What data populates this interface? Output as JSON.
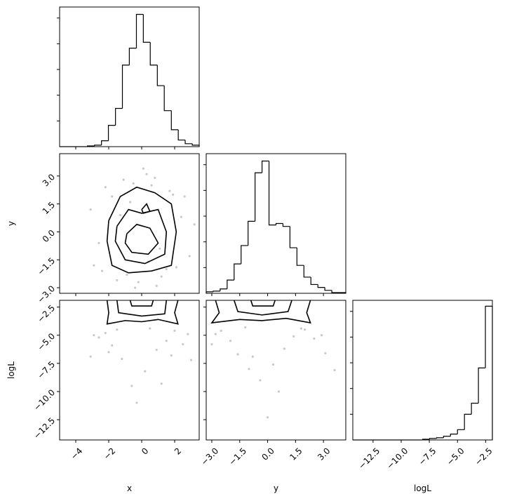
{
  "chart_data": {
    "type": "corner",
    "variables": [
      {
        "name": "x",
        "lim": [
          -4.98,
          3.49
        ],
        "ticks": [
          {
            "value": -4,
            "label": "−4"
          },
          {
            "value": -2,
            "label": "−2"
          },
          0,
          2
        ]
      },
      {
        "name": "y",
        "lim": [
          -3.3,
          4.2
        ],
        "ticks": [
          {
            "value": -3,
            "label": "−3.0"
          },
          {
            "value": -1.5,
            "label": "−1.5"
          },
          {
            "value": 0,
            "label": "0.0"
          },
          1.5,
          {
            "value": 3,
            "label": "3.0"
          }
        ]
      },
      {
        "name": "logL",
        "lim": [
          -14.3,
          -1.9
        ],
        "ticks": [
          {
            "value": -12.5,
            "label": "−12.5"
          },
          {
            "value": -10,
            "label": "−10.0"
          },
          {
            "value": -7.5,
            "label": "−7.5"
          },
          {
            "value": -5,
            "label": "−5.0"
          },
          {
            "value": -2.5,
            "label": "−2.5"
          }
        ]
      }
    ],
    "hist_ylim": [
      0,
      190
    ],
    "hist_ticks": [
      35,
      70,
      105,
      140,
      175
    ],
    "line_color": "#000000",
    "point_color": "#888888",
    "histograms": [
      {
        "var": 0,
        "bins": [
          -4.98,
          -4.56,
          -4.13,
          -3.71,
          -3.29,
          -2.86,
          -2.44,
          -2.02,
          -1.59,
          -1.17,
          -0.75,
          -0.32,
          0.1,
          0.52,
          0.95,
          1.37,
          1.8,
          2.22,
          2.64,
          3.07,
          3.49
        ],
        "counts": [
          0,
          0,
          0,
          0,
          1,
          2,
          8,
          29,
          52,
          111,
          134,
          180,
          142,
          111,
          83,
          49,
          23,
          9,
          4,
          2
        ]
      },
      {
        "var": 1,
        "bins": [
          -3.3,
          -2.925,
          -2.55,
          -2.175,
          -1.8,
          -1.425,
          -1.05,
          -0.675,
          -0.3,
          0.075,
          0.45,
          0.825,
          1.2,
          1.575,
          1.95,
          2.325,
          2.7,
          3.075,
          3.45,
          3.825,
          4.2
        ],
        "counts": [
          2,
          3,
          6,
          18,
          40,
          65,
          98,
          164,
          180,
          93,
          95,
          91,
          62,
          38,
          22,
          12,
          8,
          4,
          1,
          1
        ]
      },
      {
        "var": 2,
        "bins": [
          -14.3,
          -13.68,
          -13.06,
          -12.44,
          -11.82,
          -11.2,
          -10.58,
          -9.96,
          -9.34,
          -8.72,
          -8.1,
          -7.48,
          -6.86,
          -6.24,
          -5.62,
          -5.0,
          -4.38,
          -3.76,
          -3.14,
          -2.52,
          -1.9
        ],
        "counts": [
          0,
          0,
          0,
          0,
          0,
          0,
          0,
          0,
          0,
          0,
          1,
          2,
          3,
          5,
          8,
          14,
          35,
          50,
          98,
          182
        ]
      }
    ],
    "panels": [
      {
        "xvar": 0,
        "yvar": 1,
        "points": {
          "x": [
            -0.5,
            1.2,
            -1.8,
            0.3,
            2.4,
            -2.6,
            0.9,
            -0.2,
            1.7,
            -1.1,
            2.9,
            -3.1,
            0.6,
            -0.9,
            1.5,
            -2.2,
            0.1,
            2.1,
            -1.5,
            0.8,
            -0.4,
            3.2,
            -2.9,
            1.9,
            -0.7,
            0.4,
            -1.3,
            2.6,
            -2.4,
            1.1
          ],
          "y": [
            2.6,
            -2.4,
            1.9,
            3.1,
            0.8,
            -0.6,
            -2.9,
            -2.7,
            2.2,
            2.8,
            -1.3,
            1.2,
            2.5,
            -2.3,
            -2.0,
            2.4,
            3.4,
            -1.9,
            -2.6,
            2.9,
            -3.0,
            0.4,
            -1.8,
            2.0,
            1.6,
            -1.6,
            0.9,
            1.9,
            -2.1,
            -0.9
          ]
        },
        "contours": [
          {
            "x": [
              -2.0,
              -1.3,
              -0.3,
              0.8,
              1.8,
              2.1,
              1.8,
              0.6,
              -0.8,
              -1.8,
              -2.1,
              -2.0
            ],
            "y": [
              0.6,
              1.9,
              2.4,
              2.1,
              1.5,
              0,
              -1.8,
              -2.1,
              -2.2,
              -1.8,
              -0.5,
              0.6
            ]
          },
          {
            "x": [
              -1.5,
              -0.8,
              0,
              1.0,
              1.5,
              1.4,
              0.2,
              -1.0,
              -1.6,
              -1.5
            ],
            "y": [
              0.3,
              1.2,
              1.0,
              1.2,
              0,
              -1.2,
              -1.7,
              -1.5,
              -0.5,
              0.3
            ]
          },
          {
            "x": [
              -0.9,
              -0.3,
              0.5,
              1.0,
              0.4,
              -0.6,
              -1.0,
              -0.9
            ],
            "y": [
              -0.1,
              0.4,
              0.2,
              -0.6,
              -1.2,
              -1.1,
              -0.6,
              -0.1
            ]
          },
          {
            "x": [
              0,
              0.3,
              0.5,
              0.1,
              0
            ],
            "y": [
              1.2,
              1.5,
              1.1,
              1.0,
              1.2
            ]
          }
        ]
      },
      {
        "xvar": 0,
        "yvar": 2,
        "points": {
          "x": [
            -3.1,
            -2.6,
            -2.2,
            -1.8,
            -1.2,
            -0.6,
            0.2,
            0.9,
            1.5,
            2.0,
            2.5,
            3.0,
            -2.9,
            -1.5,
            0.5,
            1.8,
            2.8,
            -0.3,
            -2.0,
            1.2
          ],
          "y": [
            -6.9,
            -5.2,
            -4.8,
            -5.9,
            -7.1,
            -9.5,
            -8.2,
            -6.3,
            -5.5,
            -4.6,
            -5.8,
            -7.2,
            -5.0,
            -4.5,
            -4.4,
            -6.8,
            -4.9,
            -11.0,
            -6.5,
            -9.3
          ]
        },
        "contours": [
          {
            "x": [
              -2.1,
              -2.0,
              -2.1,
              -1.0,
              0,
              1.0,
              2.2,
              2.0,
              2.2
            ],
            "y": [
              -1.9,
              -3.0,
              -4.0,
              -3.7,
              -3.8,
              -3.6,
              -4.0,
              -3.0,
              -1.9
            ]
          },
          {
            "x": [
              -1.5,
              -1.4,
              0,
              1.4,
              1.5
            ],
            "y": [
              -1.9,
              -3.0,
              -3.3,
              -3.1,
              -1.9
            ]
          },
          {
            "x": [
              -0.7,
              -0.6,
              0.6,
              0.7
            ],
            "y": [
              -1.9,
              -2.4,
              -2.4,
              -1.9
            ]
          }
        ]
      },
      {
        "xvar": 1,
        "yvar": 2,
        "points": {
          "x": [
            -3.0,
            -2.5,
            -2.0,
            -1.6,
            -1.0,
            -0.4,
            0.3,
            0.9,
            1.4,
            2.0,
            2.5,
            3.1,
            3.6,
            -2.8,
            -1.2,
            0.6,
            1.8,
            2.9,
            -0.8,
            0.0
          ],
          "y": [
            -5.8,
            -4.6,
            -5.5,
            -6.7,
            -8.0,
            -9.0,
            -7.6,
            -6.2,
            -5.1,
            -4.5,
            -5.3,
            -6.6,
            -8.1,
            -4.9,
            -4.3,
            -10.0,
            -4.4,
            -5.0,
            -6.9,
            -12.3
          ]
        },
        "contours": [
          {
            "x": [
              -2.8,
              -2.6,
              -3.0,
              -1.5,
              -0.3,
              1.0,
              2.3,
              2.1,
              2.3
            ],
            "y": [
              -1.9,
              -3.0,
              -3.9,
              -3.6,
              -3.7,
              -3.5,
              -3.9,
              -3.0,
              -1.9
            ]
          },
          {
            "x": [
              -1.8,
              -1.6,
              -0.3,
              1.1,
              1.3
            ],
            "y": [
              -1.9,
              -2.9,
              -3.2,
              -2.9,
              -1.9
            ]
          },
          {
            "x": [
              -0.9,
              -0.8,
              0.3,
              0.4
            ],
            "y": [
              -1.9,
              -2.4,
              -2.4,
              -1.9
            ]
          }
        ]
      }
    ]
  }
}
